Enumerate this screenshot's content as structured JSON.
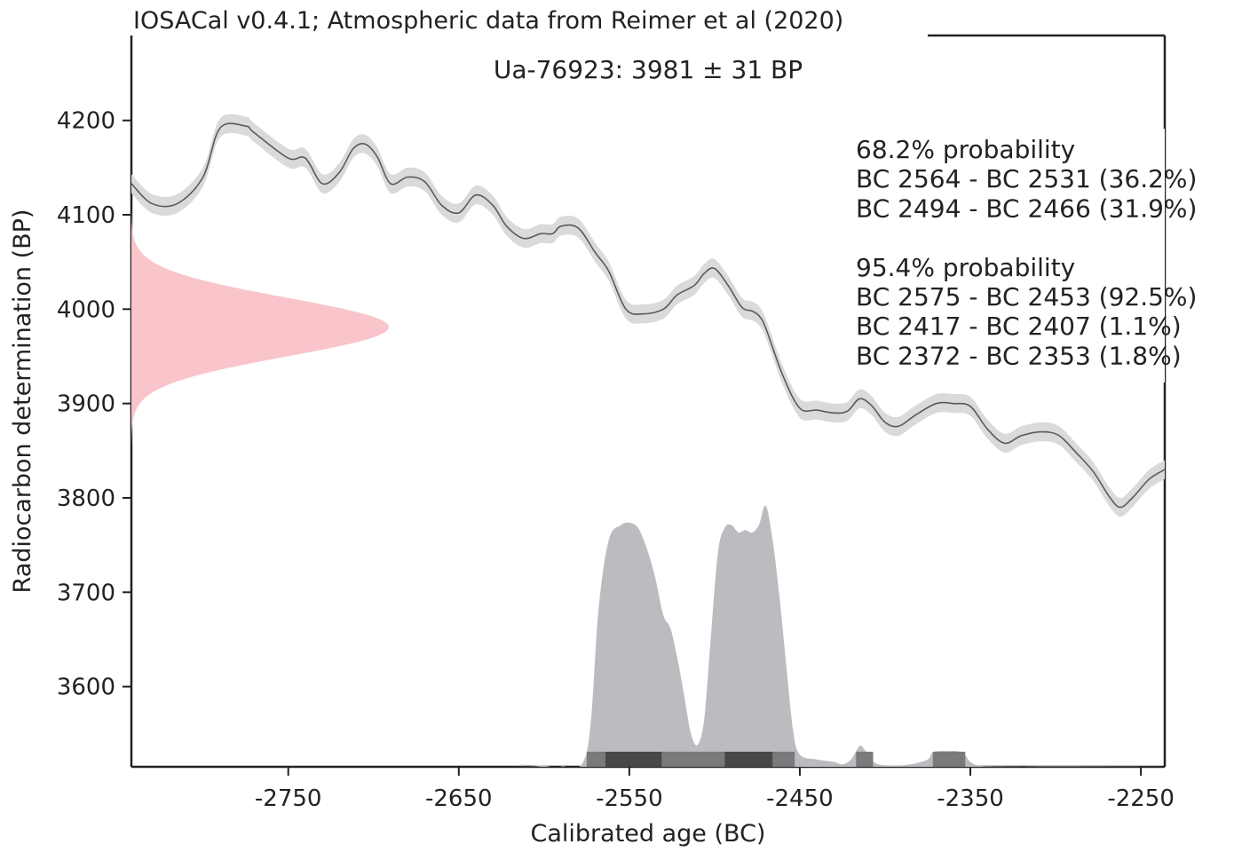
{
  "chart_data": {
    "type": "area",
    "title": "IOSACal v0.4.1; Atmospheric data from Reimer et al (2020)",
    "subtitle": "Ua-76923: 3981 ± 31 BP",
    "xlabel": "Calibrated age (BC)",
    "ylabel": "Radiocarbon determination (BP)",
    "xlim": [
      -2842,
      -2236
    ],
    "ylim": [
      3515,
      4290
    ],
    "x_ticks": [
      -2750,
      -2650,
      -2550,
      -2450,
      -2350,
      -2250
    ],
    "y_ticks": [
      4200,
      4100,
      4000,
      3900,
      3800,
      3700,
      3600
    ],
    "grid": false,
    "radiocarbon_date": {
      "mean": 3981,
      "sigma": 31
    },
    "calibration_curve": {
      "sigma": 10,
      "x": [
        -2842,
        -2830,
        -2815,
        -2800,
        -2790,
        -2775,
        -2770,
        -2750,
        -2740,
        -2730,
        -2720,
        -2712,
        -2705,
        -2698,
        -2690,
        -2680,
        -2670,
        -2660,
        -2650,
        -2640,
        -2630,
        -2622,
        -2612,
        -2602,
        -2595,
        -2590,
        -2580,
        -2570,
        -2562,
        -2552,
        -2542,
        -2530,
        -2522,
        -2512,
        -2506,
        -2500,
        -2492,
        -2484,
        -2478,
        -2474,
        -2470,
        -2460,
        -2450,
        -2440,
        -2430,
        -2422,
        -2415,
        -2408,
        -2400,
        -2392,
        -2382,
        -2370,
        -2360,
        -2350,
        -2340,
        -2330,
        -2320,
        -2308,
        -2298,
        -2288,
        -2278,
        -2268,
        -2262,
        -2255,
        -2245,
        -2236
      ],
      "y": [
        4133,
        4112,
        4112,
        4140,
        4192,
        4194,
        4187,
        4160,
        4160,
        4133,
        4145,
        4170,
        4175,
        4162,
        4133,
        4140,
        4135,
        4110,
        4102,
        4121,
        4110,
        4088,
        4075,
        4080,
        4080,
        4088,
        4086,
        4060,
        4040,
        4000,
        3995,
        4000,
        4015,
        4025,
        4038,
        4043,
        4025,
        4002,
        3998,
        3993,
        3980,
        3930,
        3895,
        3893,
        3890,
        3892,
        3905,
        3898,
        3880,
        3876,
        3888,
        3900,
        3900,
        3897,
        3873,
        3858,
        3866,
        3870,
        3866,
        3848,
        3828,
        3800,
        3790,
        3800,
        3820,
        3830
      ]
    },
    "calibrated_distribution": {
      "x": [
        -2842,
        -2620,
        -2615,
        -2600,
        -2590,
        -2575,
        -2568,
        -2562,
        -2555,
        -2550,
        -2545,
        -2540,
        -2535,
        -2530,
        -2526,
        -2522,
        -2518,
        -2514,
        -2510,
        -2506,
        -2502,
        -2498,
        -2494,
        -2490,
        -2486,
        -2482,
        -2478,
        -2474,
        -2470,
        -2466,
        -2462,
        -2458,
        -2454,
        -2450,
        -2440,
        -2430,
        -2425,
        -2420,
        -2415,
        -2412,
        -2408,
        -2404,
        -2395,
        -2385,
        -2375,
        -2372,
        -2365,
        -2355,
        -2350,
        -2345,
        -2335,
        -2320,
        -2300,
        -2236
      ],
      "y": [
        0,
        0,
        0.008,
        0.004,
        0.001,
        0.06,
        0.65,
        0.93,
        0.99,
        1.0,
        0.98,
        0.9,
        0.78,
        0.62,
        0.57,
        0.45,
        0.3,
        0.14,
        0.09,
        0.2,
        0.55,
        0.88,
        0.98,
        0.99,
        0.96,
        0.97,
        0.96,
        0.99,
        1.07,
        0.93,
        0.7,
        0.42,
        0.15,
        0.05,
        0.03,
        0.02,
        0.01,
        0.03,
        0.085,
        0.07,
        0.03,
        0.01,
        0.005,
        0.01,
        0.03,
        0.06,
        0.065,
        0.06,
        0.02,
        0.005,
        0.002,
        0.001,
        0.002,
        0
      ]
    },
    "hpd_bars": {
      "sigma1": [
        [
          -2564,
          -2531
        ],
        [
          -2494,
          -2466
        ]
      ],
      "sigma2": [
        [
          -2575,
          -2453
        ],
        [
          -2417,
          -2407
        ],
        [
          -2372,
          -2353
        ]
      ]
    },
    "annotation_lines": [
      "68.2% probability",
      "BC 2564 - BC 2531 (36.2%)",
      "BC 2494 - BC 2466 (31.9%)",
      "",
      "95.4% probability",
      "BC 2575 - BC 2453 (92.5%)",
      "BC 2417 - BC 2407 (1.1%)",
      "BC 2372 - BC 2353 (1.8%)"
    ],
    "colors": {
      "curve_line": "#5a5a5a",
      "curve_band": "#d9dadc",
      "radiocarbon_fill": "#f9c5ca",
      "distribution_fill": "#bbbcc0",
      "hpd_95": "#7a7a7c",
      "hpd_68": "#474747",
      "axes": "#222222"
    }
  }
}
